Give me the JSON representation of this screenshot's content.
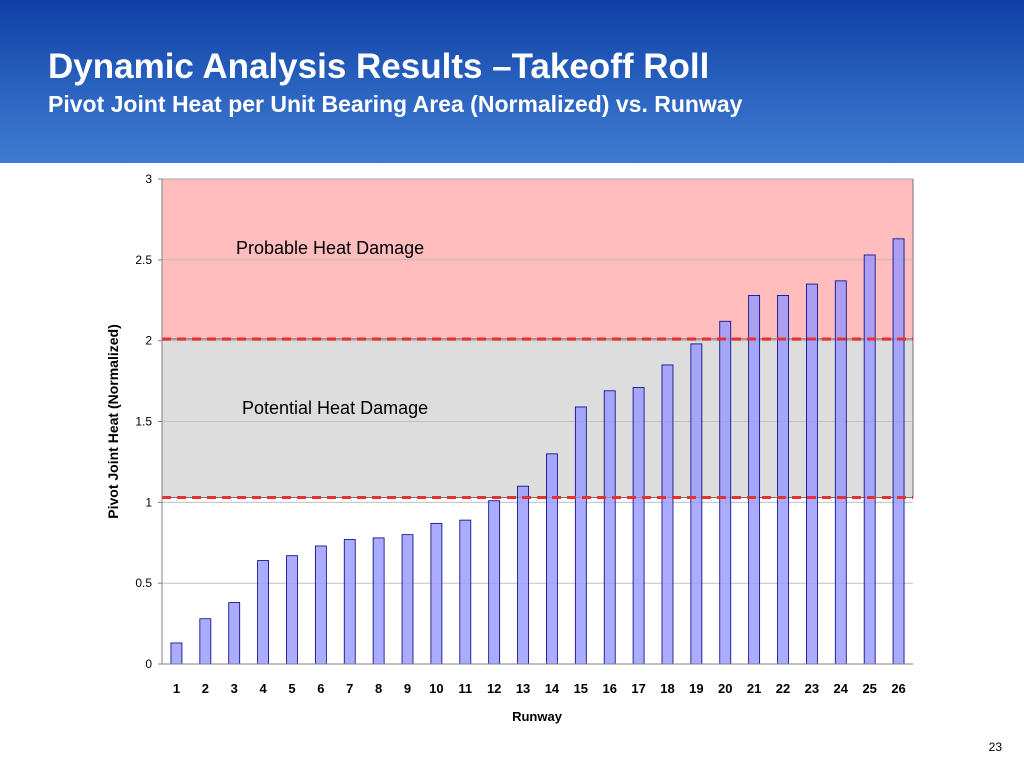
{
  "slide": {
    "title": "Dynamic Analysis Results –Takeoff Roll",
    "subtitle": "Pivot Joint Heat per Unit Bearing Area (Normalized) vs. Runway",
    "page_number": "23"
  },
  "colors": {
    "header_top": "#0f3fa6",
    "header_bottom": "#3f7bd0",
    "bar_fill": "#9999ff",
    "bar_stroke": "#000080",
    "probable_zone": "#ffbdbd",
    "potential_zone": "#dddddd",
    "threshold_line": "#e83030"
  },
  "chart_data": {
    "type": "bar",
    "xlabel": "Runway",
    "ylabel": "Pivot Joint Heat (Normalized)",
    "categories": [
      "1",
      "2",
      "3",
      "4",
      "5",
      "6",
      "7",
      "8",
      "9",
      "10",
      "11",
      "12",
      "13",
      "14",
      "15",
      "16",
      "17",
      "18",
      "19",
      "20",
      "21",
      "22",
      "23",
      "24",
      "25",
      "26"
    ],
    "values": [
      0.13,
      0.28,
      0.38,
      0.64,
      0.67,
      0.73,
      0.77,
      0.78,
      0.8,
      0.87,
      0.89,
      1.01,
      1.1,
      1.3,
      1.59,
      1.69,
      1.71,
      1.85,
      1.98,
      2.12,
      2.28,
      2.28,
      2.35,
      2.37,
      2.53,
      2.63
    ],
    "ylim": [
      0,
      3
    ],
    "yticks": [
      0,
      0.5,
      1,
      1.5,
      2,
      2.5,
      3
    ],
    "ytick_labels": [
      "0",
      "0.5",
      "1",
      "1.5",
      "2",
      "2.5",
      "3"
    ],
    "grid": true,
    "legend": "none",
    "zones": [
      {
        "label": "Probable Heat Damage",
        "from": 2.01,
        "to": 3
      },
      {
        "label": "Potential Heat Damage",
        "from": 1.03,
        "to": 2.01
      }
    ],
    "threshold_lines": [
      1.03,
      2.01
    ]
  }
}
